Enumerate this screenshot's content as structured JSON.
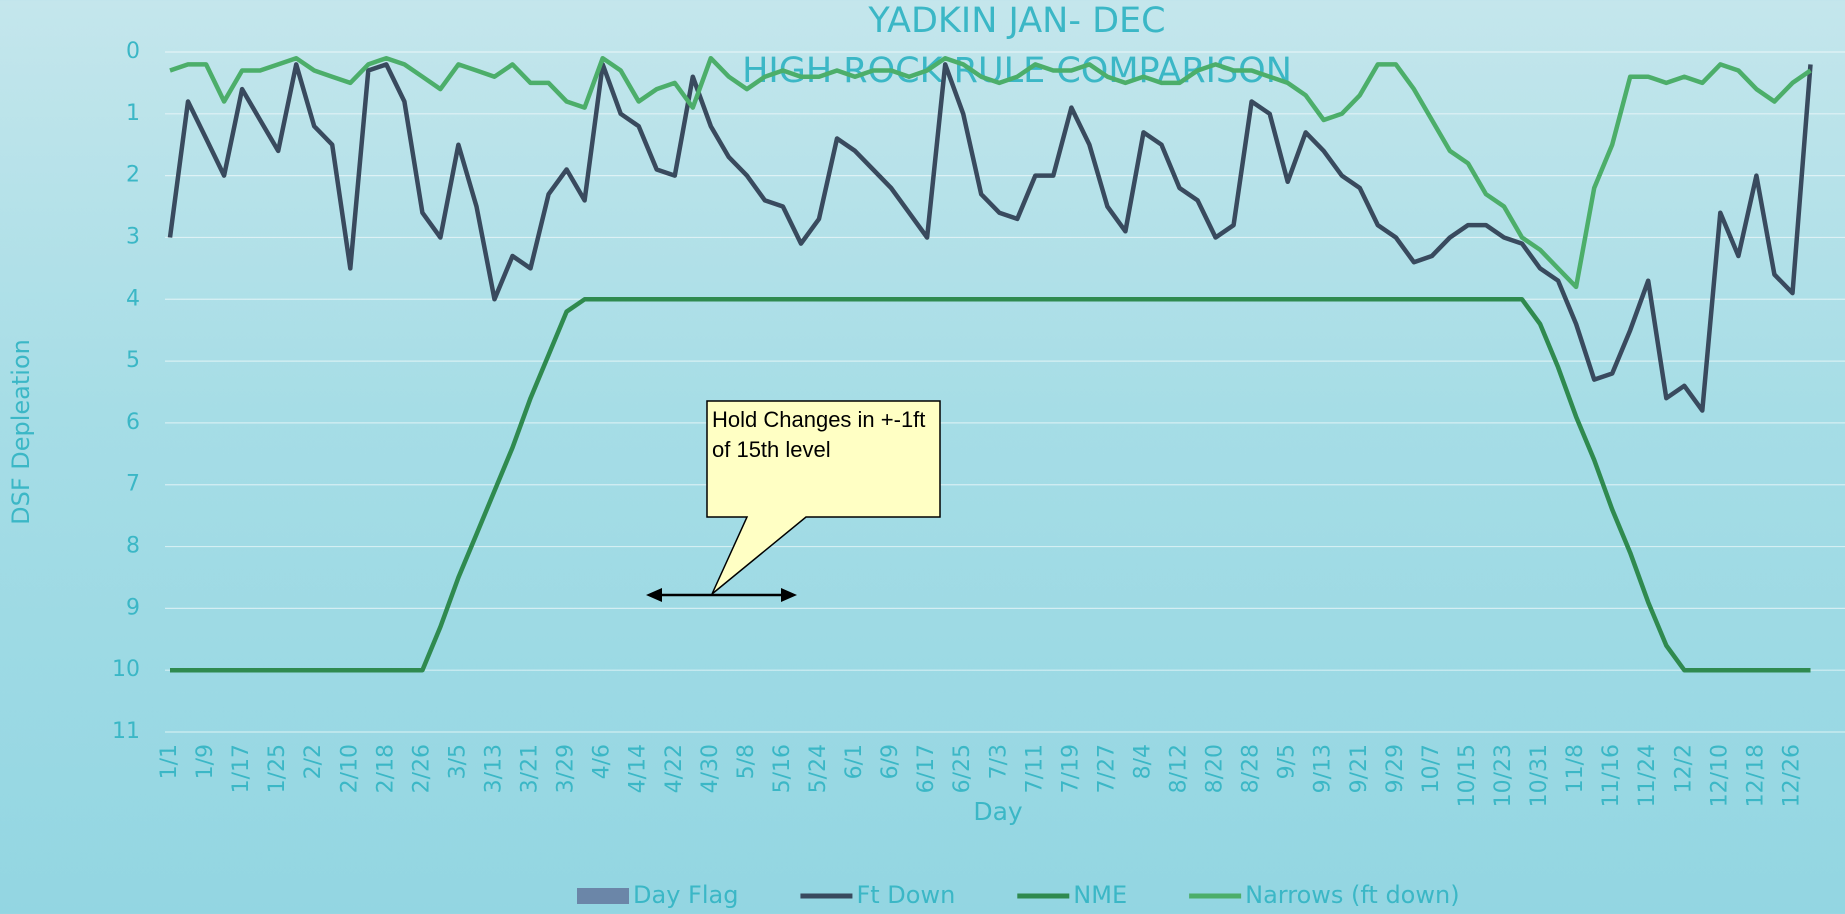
{
  "chart_data": {
    "type": "line",
    "title": "YADKIN JAN- DEC",
    "subtitle": "HIGH ROCK RULE COMPARISON",
    "ylabel": "DSF  Depleation",
    "xlabel": "Day",
    "annotation": "Hold Changes in +-1ft of 15th level",
    "ylim": [
      0,
      11
    ],
    "y_inverted": true,
    "yticks": [
      0,
      1,
      2,
      3,
      4,
      5,
      6,
      7,
      8,
      9,
      10,
      11
    ],
    "grid": true,
    "legend": "bottom",
    "categories": [
      "1/1",
      null,
      "1/9",
      null,
      "1/17",
      null,
      "1/25",
      null,
      "2/2",
      null,
      "2/10",
      null,
      "2/18",
      null,
      "2/26",
      null,
      "3/5",
      null,
      "3/13",
      null,
      "3/21",
      null,
      "3/29",
      null,
      "4/6",
      null,
      "4/14",
      null,
      "4/22",
      null,
      "4/30",
      null,
      "5/8",
      null,
      "5/16",
      null,
      "5/24",
      null,
      "6/1",
      null,
      "6/9",
      null,
      "6/17",
      null,
      "6/25",
      null,
      "7/3",
      null,
      "7/11",
      null,
      "7/19",
      null,
      "7/27",
      null,
      "8/4",
      null,
      "8/12",
      null,
      "8/20",
      null,
      "8/28",
      null,
      "9/5",
      null,
      "9/13",
      null,
      "9/21",
      null,
      "9/29",
      null,
      "10/7",
      null,
      "10/15",
      null,
      "10/23",
      null,
      "10/31",
      null,
      "11/8",
      null,
      "11/16",
      null,
      "11/24",
      null,
      "12/2",
      null,
      "12/10",
      null,
      "12/18",
      null,
      "12/26",
      null
    ],
    "series": [
      {
        "name": "Day Flag",
        "color": "#6b86a8",
        "style": "bar",
        "values": [
          null,
          null,
          null,
          null,
          null,
          null,
          null,
          null,
          null,
          null,
          null,
          null,
          null,
          null,
          null,
          null,
          null,
          null,
          null,
          null,
          null,
          null,
          null,
          null,
          null,
          null,
          null,
          null,
          null,
          null,
          null,
          null,
          null,
          null,
          null,
          null,
          null,
          null,
          null,
          null,
          null,
          null,
          null,
          null,
          null,
          null,
          null,
          null,
          null,
          null,
          null,
          null,
          null,
          null,
          null,
          null,
          null,
          null,
          null,
          null,
          null,
          null,
          null,
          null,
          null,
          null,
          null,
          null,
          null,
          null,
          null,
          null,
          null,
          null,
          null,
          null,
          null,
          null,
          null,
          null,
          null,
          null,
          null,
          null,
          null,
          null,
          null,
          null,
          null,
          null,
          null,
          null
        ]
      },
      {
        "name": "Ft Down",
        "color": "#394a5e",
        "style": "line",
        "values": [
          3.0,
          0.8,
          1.4,
          2.0,
          0.6,
          1.1,
          1.6,
          0.2,
          1.2,
          1.5,
          3.5,
          0.3,
          0.2,
          0.8,
          2.6,
          3.0,
          1.5,
          2.5,
          4.0,
          3.3,
          3.5,
          2.3,
          1.9,
          2.4,
          0.2,
          1.0,
          1.2,
          1.9,
          2.0,
          0.4,
          1.2,
          1.7,
          2.0,
          2.4,
          2.5,
          3.1,
          2.7,
          1.4,
          1.6,
          1.9,
          2.2,
          2.6,
          3.0,
          0.2,
          1.0,
          2.3,
          2.6,
          2.7,
          2.0,
          2.0,
          0.9,
          1.5,
          2.5,
          2.9,
          1.3,
          1.5,
          2.2,
          2.4,
          3.0,
          2.8,
          0.8,
          1.0,
          2.1,
          1.3,
          1.6,
          2.0,
          2.2,
          2.8,
          3.0,
          3.4,
          3.3,
          3.0,
          2.8,
          2.8,
          3.0,
          3.1,
          3.5,
          3.7,
          4.4,
          5.3,
          5.2,
          4.5,
          3.7,
          5.6,
          5.4,
          5.8,
          2.6,
          3.3,
          2.0,
          3.6,
          3.9,
          0.2
        ]
      },
      {
        "name": "NME",
        "color": "#2f8a4f",
        "style": "line",
        "values": [
          10,
          10,
          10,
          10,
          10,
          10,
          10,
          10,
          10,
          10,
          10,
          10,
          10,
          10,
          10,
          9.3,
          8.5,
          7.8,
          7.1,
          6.4,
          5.6,
          4.9,
          4.2,
          4,
          4,
          4,
          4,
          4,
          4,
          4,
          4,
          4,
          4,
          4,
          4,
          4,
          4,
          4,
          4,
          4,
          4,
          4,
          4,
          4,
          4,
          4,
          4,
          4,
          4,
          4,
          4,
          4,
          4,
          4,
          4,
          4,
          4,
          4,
          4,
          4,
          4,
          4,
          4,
          4,
          4,
          4,
          4,
          4,
          4,
          4,
          4,
          4,
          4,
          4,
          4,
          4,
          4.4,
          5.1,
          5.9,
          6.6,
          7.4,
          8.1,
          8.9,
          9.6,
          10,
          10,
          10,
          10,
          10,
          10,
          10,
          10
        ]
      },
      {
        "name": "Narrows (ft down)",
        "color": "#4cae6a",
        "style": "line",
        "values": [
          0.3,
          0.2,
          0.2,
          0.8,
          0.3,
          0.3,
          0.2,
          0.1,
          0.3,
          0.4,
          0.5,
          0.2,
          0.1,
          0.2,
          0.4,
          0.6,
          0.2,
          0.3,
          0.4,
          0.2,
          0.5,
          0.5,
          0.8,
          0.9,
          0.1,
          0.3,
          0.8,
          0.6,
          0.5,
          0.9,
          0.1,
          0.4,
          0.6,
          0.4,
          0.3,
          0.4,
          0.4,
          0.3,
          0.4,
          0.3,
          0.3,
          0.4,
          0.3,
          0.1,
          0.2,
          0.4,
          0.5,
          0.4,
          0.2,
          0.3,
          0.3,
          0.2,
          0.4,
          0.5,
          0.4,
          0.5,
          0.5,
          0.3,
          0.2,
          0.3,
          0.3,
          0.4,
          0.5,
          0.7,
          1.1,
          1.0,
          0.7,
          0.2,
          0.2,
          0.6,
          1.1,
          1.6,
          1.8,
          2.3,
          2.5,
          3.0,
          3.2,
          3.5,
          3.8,
          2.2,
          1.5,
          0.4,
          0.4,
          0.5,
          0.4,
          0.5,
          0.2,
          0.3,
          0.6,
          0.8,
          0.5,
          0.3
        ]
      }
    ]
  }
}
